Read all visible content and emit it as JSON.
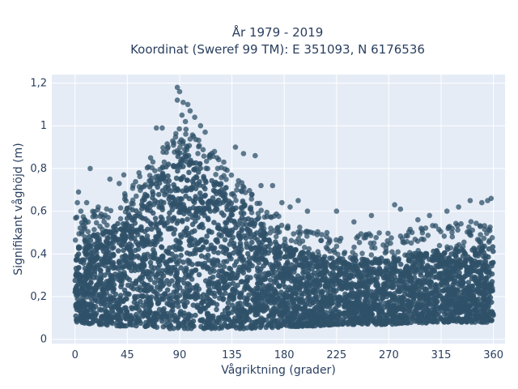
{
  "chart_data": {
    "type": "scatter",
    "title_lines": [
      "År 1979 - 2019",
      "Koordinat (Sweref 99 TM): E 351093, N 6176536"
    ],
    "xlabel": "Vågriktning (grader)",
    "ylabel": "Signifikant våghöjd (m)",
    "xlim": [
      -20,
      370
    ],
    "ylim": [
      -0.02,
      1.24
    ],
    "xticks": [
      0,
      45,
      90,
      135,
      180,
      225,
      270,
      315,
      360
    ],
    "xtick_labels": [
      "0",
      "45",
      "90",
      "135",
      "180",
      "225",
      "270",
      "315",
      "360"
    ],
    "yticks": [
      0,
      0.2,
      0.4,
      0.6,
      0.8,
      1.0,
      1.2
    ],
    "ytick_labels": [
      "0",
      "0,2",
      "0,4",
      "0,6",
      "0,8",
      "1",
      "1,2"
    ],
    "grid": true,
    "colors": {
      "marker": "#2f5168",
      "plot_bg": "#e5ecf6",
      "grid": "#ffffff",
      "text": "#2a3f5f"
    },
    "envelope": {
      "x": [
        0,
        20,
        45,
        60,
        75,
        90,
        100,
        115,
        135,
        150,
        165,
        180,
        200,
        225,
        270,
        315,
        360
      ],
      "y_low": [
        0.08,
        0.07,
        0.06,
        0.06,
        0.05,
        0.05,
        0.05,
        0.05,
        0.05,
        0.05,
        0.05,
        0.06,
        0.06,
        0.07,
        0.07,
        0.08,
        0.08
      ],
      "y_high": [
        0.45,
        0.5,
        0.58,
        0.68,
        0.8,
        0.88,
        0.86,
        0.78,
        0.66,
        0.58,
        0.5,
        0.44,
        0.4,
        0.38,
        0.38,
        0.42,
        0.44
      ]
    },
    "outliers": [
      {
        "x": 3,
        "y": 0.69
      },
      {
        "x": 2,
        "y": 0.64
      },
      {
        "x": 5,
        "y": 0.6
      },
      {
        "x": 13,
        "y": 0.8
      },
      {
        "x": 10,
        "y": 0.64
      },
      {
        "x": 20,
        "y": 0.62
      },
      {
        "x": 30,
        "y": 0.75
      },
      {
        "x": 38,
        "y": 0.73
      },
      {
        "x": 42,
        "y": 0.77
      },
      {
        "x": 55,
        "y": 0.78
      },
      {
        "x": 65,
        "y": 0.85
      },
      {
        "x": 70,
        "y": 0.99
      },
      {
        "x": 75,
        "y": 0.99
      },
      {
        "x": 80,
        "y": 0.9
      },
      {
        "x": 85,
        "y": 0.92
      },
      {
        "x": 88,
        "y": 1.18
      },
      {
        "x": 90,
        "y": 1.16
      },
      {
        "x": 88,
        "y": 1.12
      },
      {
        "x": 93,
        "y": 1.11
      },
      {
        "x": 97,
        "y": 1.1
      },
      {
        "x": 92,
        "y": 1.05
      },
      {
        "x": 95,
        "y": 1.02
      },
      {
        "x": 99,
        "y": 1.07
      },
      {
        "x": 103,
        "y": 1.04
      },
      {
        "x": 108,
        "y": 1.0
      },
      {
        "x": 112,
        "y": 0.97
      },
      {
        "x": 120,
        "y": 0.88
      },
      {
        "x": 128,
        "y": 0.83
      },
      {
        "x": 138,
        "y": 0.9
      },
      {
        "x": 145,
        "y": 0.87
      },
      {
        "x": 155,
        "y": 0.86
      },
      {
        "x": 160,
        "y": 0.72
      },
      {
        "x": 170,
        "y": 0.72
      },
      {
        "x": 178,
        "y": 0.64
      },
      {
        "x": 185,
        "y": 0.62
      },
      {
        "x": 192,
        "y": 0.65
      },
      {
        "x": 200,
        "y": 0.6
      },
      {
        "x": 225,
        "y": 0.6
      },
      {
        "x": 240,
        "y": 0.55
      },
      {
        "x": 255,
        "y": 0.58
      },
      {
        "x": 275,
        "y": 0.63
      },
      {
        "x": 280,
        "y": 0.61
      },
      {
        "x": 295,
        "y": 0.56
      },
      {
        "x": 305,
        "y": 0.58
      },
      {
        "x": 320,
        "y": 0.6
      },
      {
        "x": 330,
        "y": 0.62
      },
      {
        "x": 340,
        "y": 0.65
      },
      {
        "x": 350,
        "y": 0.64
      },
      {
        "x": 355,
        "y": 0.65
      },
      {
        "x": 358,
        "y": 0.66
      }
    ]
  }
}
